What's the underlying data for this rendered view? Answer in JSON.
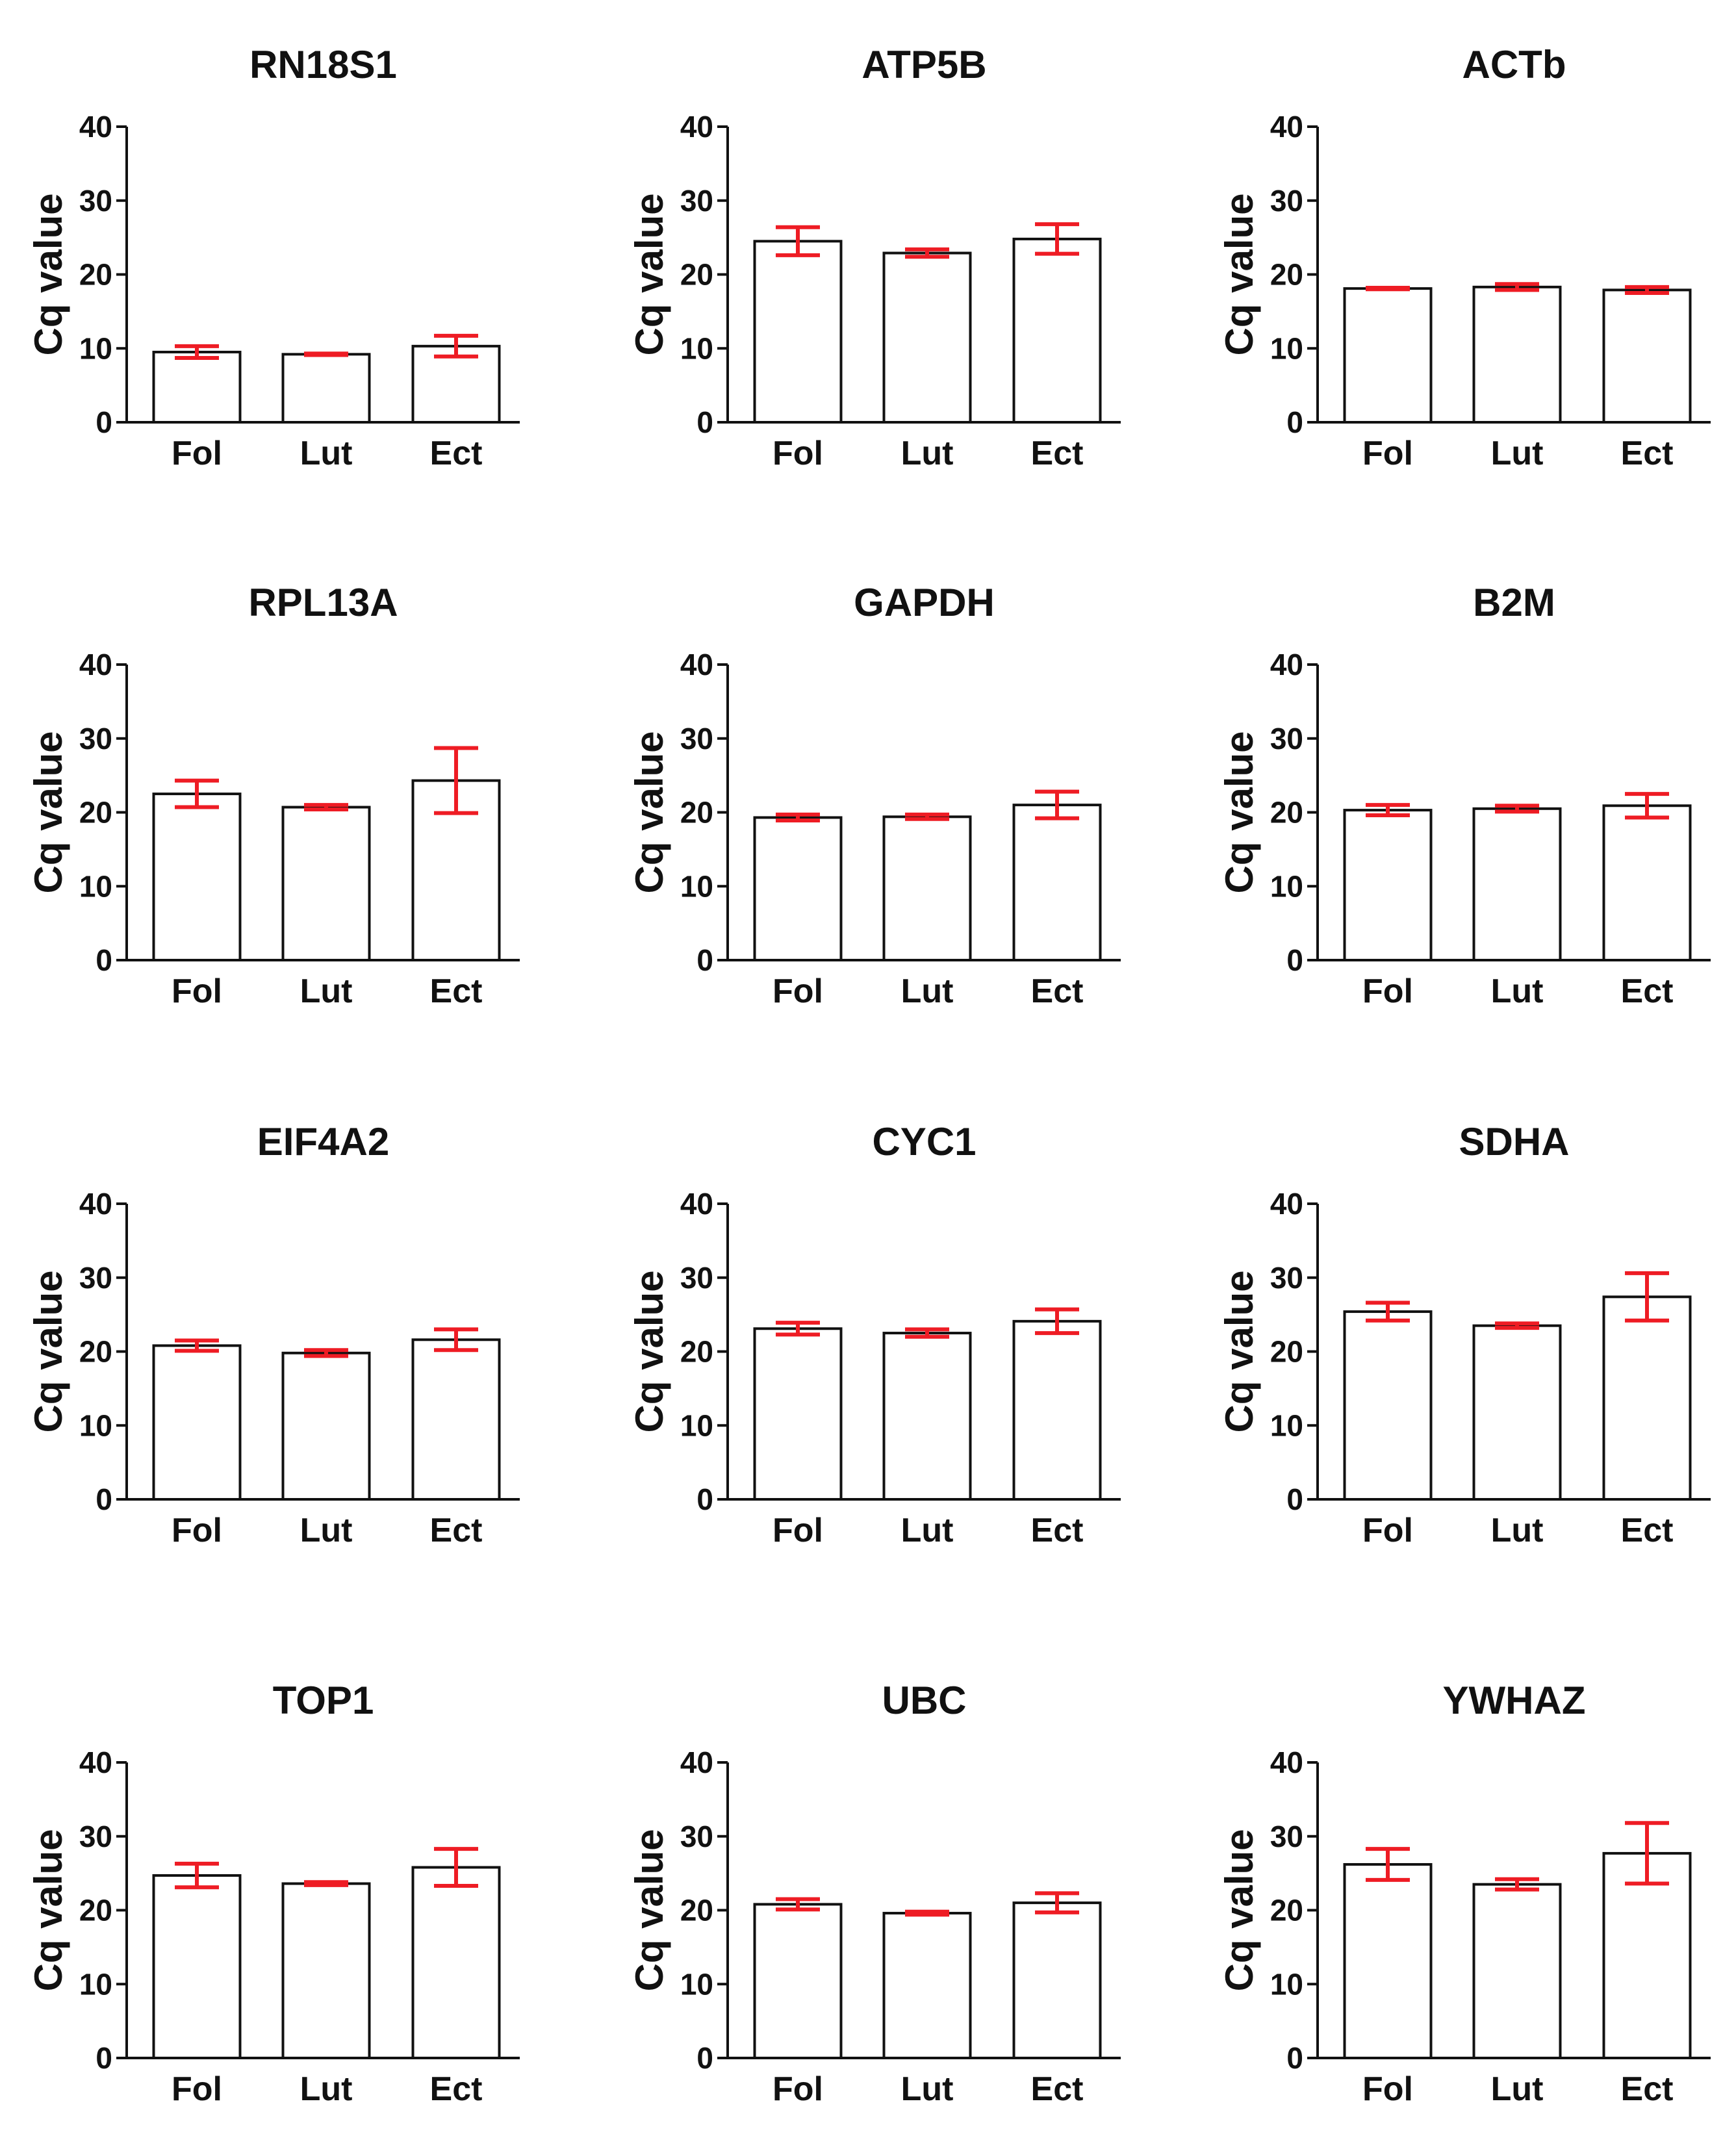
{
  "colors": {
    "bar_fill": "#ffffff",
    "bar_stroke": "#111111",
    "error_bar": "#ee1c24",
    "axis": "#111111"
  },
  "chart_data": [
    {
      "type": "bar",
      "title": "RN18S1",
      "ylabel": "Cq value",
      "xlabel": "",
      "ylim": [
        0,
        40
      ],
      "yticks": [
        "0",
        "10",
        "20",
        "30",
        "40"
      ],
      "categories": [
        "Fol",
        "Lut",
        "Ect"
      ],
      "values": [
        9.5,
        9.2,
        10.3
      ],
      "errors": [
        0.8,
        0.1,
        1.4
      ]
    },
    {
      "type": "bar",
      "title": "ATP5B",
      "ylabel": "Cq value",
      "xlabel": "",
      "ylim": [
        0,
        40
      ],
      "yticks": [
        "0",
        "10",
        "20",
        "30",
        "40"
      ],
      "categories": [
        "Fol",
        "Lut",
        "Ect"
      ],
      "values": [
        24.5,
        22.9,
        24.8
      ],
      "errors": [
        1.9,
        0.5,
        2.0
      ]
    },
    {
      "type": "bar",
      "title": "ACTb",
      "ylabel": "Cq value",
      "xlabel": "",
      "ylim": [
        0,
        40
      ],
      "yticks": [
        "0",
        "10",
        "20",
        "30",
        "40"
      ],
      "categories": [
        "Fol",
        "Lut",
        "Ect"
      ],
      "values": [
        18.1,
        18.3,
        17.9
      ],
      "errors": [
        0.1,
        0.4,
        0.4
      ]
    },
    {
      "type": "bar",
      "title": "RPL13A",
      "ylabel": "Cq value",
      "xlabel": "",
      "ylim": [
        0,
        40
      ],
      "yticks": [
        "0",
        "10",
        "20",
        "30",
        "40"
      ],
      "categories": [
        "Fol",
        "Lut",
        "Ect"
      ],
      "values": [
        22.5,
        20.7,
        24.3
      ],
      "errors": [
        1.8,
        0.3,
        4.4
      ]
    },
    {
      "type": "bar",
      "title": "GAPDH",
      "ylabel": "Cq value",
      "xlabel": "",
      "ylim": [
        0,
        40
      ],
      "yticks": [
        "0",
        "10",
        "20",
        "30",
        "40"
      ],
      "categories": [
        "Fol",
        "Lut",
        "Ect"
      ],
      "values": [
        19.3,
        19.4,
        21.0
      ],
      "errors": [
        0.4,
        0.3,
        1.8
      ]
    },
    {
      "type": "bar",
      "title": "B2M",
      "ylabel": "Cq value",
      "xlabel": "",
      "ylim": [
        0,
        40
      ],
      "yticks": [
        "0",
        "10",
        "20",
        "30",
        "40"
      ],
      "categories": [
        "Fol",
        "Lut",
        "Ect"
      ],
      "values": [
        20.3,
        20.5,
        20.9
      ],
      "errors": [
        0.7,
        0.4,
        1.6
      ]
    },
    {
      "type": "bar",
      "title": "EIF4A2",
      "ylabel": "Cq value",
      "xlabel": "",
      "ylim": [
        0,
        40
      ],
      "yticks": [
        "0",
        "10",
        "20",
        "30",
        "40"
      ],
      "categories": [
        "Fol",
        "Lut",
        "Ect"
      ],
      "values": [
        20.8,
        19.8,
        21.6
      ],
      "errors": [
        0.7,
        0.4,
        1.4
      ]
    },
    {
      "type": "bar",
      "title": "CYC1",
      "ylabel": "Cq value",
      "xlabel": "",
      "ylim": [
        0,
        40
      ],
      "yticks": [
        "0",
        "10",
        "20",
        "30",
        "40"
      ],
      "categories": [
        "Fol",
        "Lut",
        "Ect"
      ],
      "values": [
        23.1,
        22.5,
        24.1
      ],
      "errors": [
        0.8,
        0.5,
        1.6
      ]
    },
    {
      "type": "bar",
      "title": "SDHA",
      "ylabel": "Cq value",
      "xlabel": "",
      "ylim": [
        0,
        40
      ],
      "yticks": [
        "0",
        "10",
        "20",
        "30",
        "40"
      ],
      "categories": [
        "Fol",
        "Lut",
        "Ect"
      ],
      "values": [
        25.4,
        23.5,
        27.4
      ],
      "errors": [
        1.2,
        0.3,
        3.2
      ]
    },
    {
      "type": "bar",
      "title": "TOP1",
      "ylabel": "Cq value",
      "xlabel": "",
      "ylim": [
        0,
        40
      ],
      "yticks": [
        "0",
        "10",
        "20",
        "30",
        "40"
      ],
      "categories": [
        "Fol",
        "Lut",
        "Ect"
      ],
      "values": [
        24.7,
        23.6,
        25.8
      ],
      "errors": [
        1.6,
        0.2,
        2.5
      ]
    },
    {
      "type": "bar",
      "title": "UBC",
      "ylabel": "Cq value",
      "xlabel": "",
      "ylim": [
        0,
        40
      ],
      "yticks": [
        "0",
        "10",
        "20",
        "30",
        "40"
      ],
      "categories": [
        "Fol",
        "Lut",
        "Ect"
      ],
      "values": [
        20.8,
        19.6,
        21.0
      ],
      "errors": [
        0.7,
        0.2,
        1.3
      ]
    },
    {
      "type": "bar",
      "title": "YWHAZ",
      "ylabel": "Cq value",
      "xlabel": "",
      "ylim": [
        0,
        40
      ],
      "yticks": [
        "0",
        "10",
        "20",
        "30",
        "40"
      ],
      "categories": [
        "Fol",
        "Lut",
        "Ect"
      ],
      "values": [
        26.2,
        23.5,
        27.7
      ],
      "errors": [
        2.1,
        0.7,
        4.1
      ]
    }
  ]
}
